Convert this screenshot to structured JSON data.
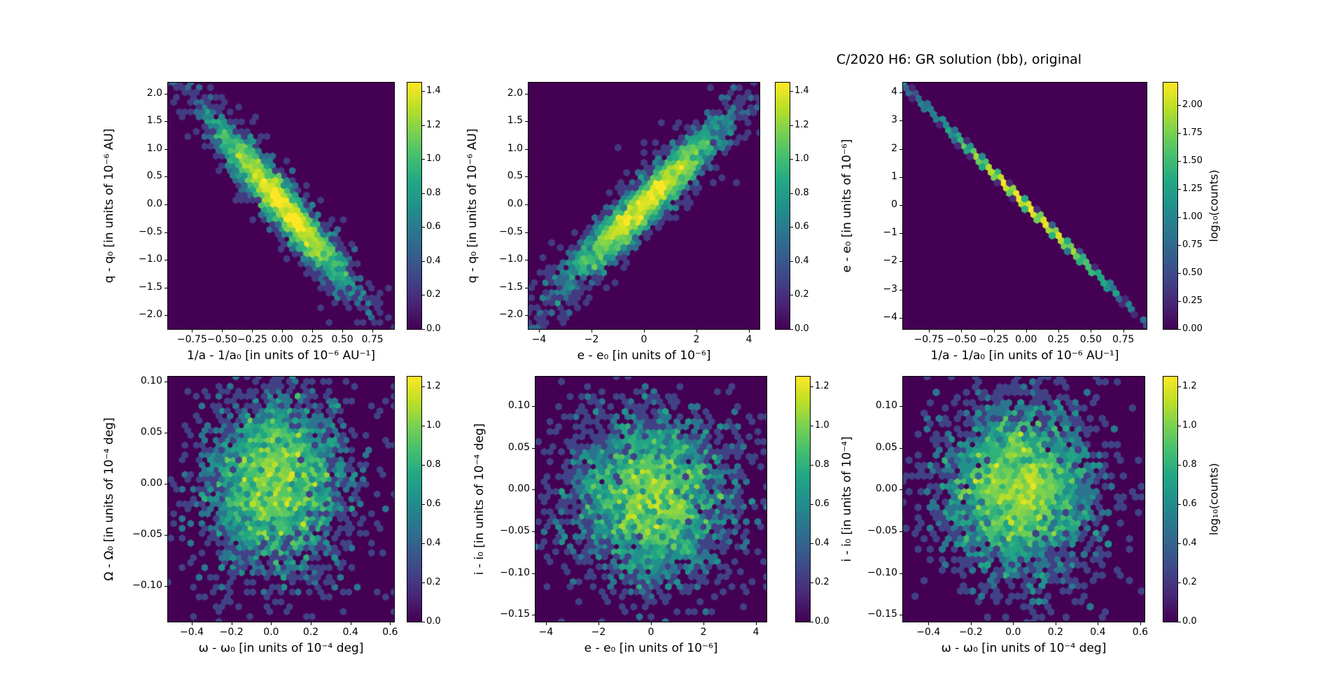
{
  "title": "C/2020 H6: GR solution (bb), original",
  "colors": {
    "background": "#ffffff",
    "plot_background": "#440154",
    "text": "#000000",
    "viridis": [
      "#440154",
      "#482475",
      "#414487",
      "#355f8d",
      "#2a788e",
      "#21918c",
      "#22a884",
      "#44bf70",
      "#7ad151",
      "#bddf26",
      "#fde725"
    ]
  },
  "chart_data": [
    {
      "id": "top-left",
      "type": "hexbin",
      "xlabel": "1/a - 1/a₀ [in units of 10⁻⁶ AU⁻¹]",
      "ylabel": "q - q₀ [in units of 10⁻⁶ AU]",
      "xlim": [
        -0.95,
        0.93
      ],
      "ylim": [
        -2.25,
        2.2
      ],
      "xticks": [
        -0.75,
        -0.5,
        -0.25,
        0,
        0.25,
        0.5,
        0.75
      ],
      "xtick_labels": [
        "−0.75",
        "−0.50",
        "−0.25",
        "0.00",
        "0.25",
        "0.50",
        "0.75"
      ],
      "yticks": [
        2,
        1.5,
        1,
        0.5,
        0,
        -0.5,
        -1,
        -1.5,
        -2
      ],
      "ytick_labels": [
        "2.0",
        "1.5",
        "1.0",
        "0.5",
        "0.0",
        "−0.5",
        "−1.0",
        "−1.5",
        "−2.0"
      ],
      "colorbar": {
        "vmin": 0,
        "vmax": 1.45,
        "ticks": [
          0,
          0.2,
          0.4,
          0.6,
          0.8,
          1.0,
          1.2,
          1.4
        ],
        "tick_labels": [
          "0.0",
          "0.2",
          "0.4",
          "0.6",
          "0.8",
          "1.0",
          "1.2",
          "1.4"
        ],
        "label": ""
      },
      "distribution": {
        "shape": "correlated-ellipse",
        "x_mean": 0,
        "y_mean": 0,
        "x_sigma": 0.27,
        "y_sigma": 0.7,
        "correlation": -0.95,
        "n_points": 3000,
        "peak_log10_counts": 1.45
      }
    },
    {
      "id": "top-middle",
      "type": "hexbin",
      "xlabel": "e - e₀ [in units of 10⁻⁶]",
      "ylabel": "q - q₀ [in units of 10⁻⁶ AU]",
      "xlim": [
        -4.4,
        4.4
      ],
      "ylim": [
        -2.25,
        2.2
      ],
      "xticks": [
        -4,
        -2,
        0,
        2,
        4
      ],
      "xtick_labels": [
        "−4",
        "−2",
        "0",
        "2",
        "4"
      ],
      "yticks": [
        2,
        1.5,
        1,
        0.5,
        0,
        -0.5,
        -1,
        -1.5,
        -2
      ],
      "ytick_labels": [
        "2.0",
        "1.5",
        "1.0",
        "0.5",
        "0.0",
        "−0.5",
        "−1.0",
        "−1.5",
        "−2.0"
      ],
      "colorbar": {
        "vmin": 0,
        "vmax": 1.45,
        "ticks": [
          0,
          0.2,
          0.4,
          0.6,
          0.8,
          1.0,
          1.2,
          1.4
        ],
        "tick_labels": [
          "0.0",
          "0.2",
          "0.4",
          "0.6",
          "0.8",
          "1.0",
          "1.2",
          "1.4"
        ],
        "label": ""
      },
      "distribution": {
        "shape": "correlated-ellipse",
        "x_mean": 0,
        "y_mean": 0,
        "x_sigma": 1.45,
        "y_sigma": 0.7,
        "correlation": 0.95,
        "n_points": 3000,
        "peak_log10_counts": 1.45
      }
    },
    {
      "id": "top-right",
      "type": "hexbin",
      "xlabel": "1/a - 1/a₀ [in units of 10⁻⁶ AU⁻¹]",
      "ylabel": "e - e₀ [in units of 10⁻⁶]",
      "xlim": [
        -0.95,
        0.93
      ],
      "ylim": [
        -4.4,
        4.35
      ],
      "xticks": [
        -0.75,
        -0.5,
        -0.25,
        0,
        0.25,
        0.5,
        0.75
      ],
      "xtick_labels": [
        "−0.75",
        "−0.50",
        "−0.25",
        "0.00",
        "0.25",
        "0.50",
        "0.75"
      ],
      "yticks": [
        4,
        3,
        2,
        1,
        0,
        -1,
        -2,
        -3,
        -4
      ],
      "ytick_labels": [
        "4",
        "3",
        "2",
        "1",
        "0",
        "−1",
        "−2",
        "−3",
        "−4"
      ],
      "colorbar": {
        "vmin": 0,
        "vmax": 2.2,
        "ticks": [
          0,
          0.25,
          0.5,
          0.75,
          1.0,
          1.25,
          1.5,
          1.75,
          2.0
        ],
        "tick_labels": [
          "0.00",
          "0.25",
          "0.50",
          "0.75",
          "1.00",
          "1.25",
          "1.50",
          "1.75",
          "2.00"
        ],
        "label": "log₁₀(counts)"
      },
      "distribution": {
        "shape": "thin-line",
        "x_mean": 0,
        "y_mean": 0,
        "x_sigma": 0.27,
        "y_sigma": 1.22,
        "correlation": -0.9998,
        "n_points": 3000,
        "peak_log10_counts": 2.2
      }
    },
    {
      "id": "bottom-left",
      "type": "hexbin",
      "xlabel": "ω - ω₀ [in units of 10⁻⁴ deg]",
      "ylabel": "Ω - Ω₀ [in units of 10⁻⁴ deg]",
      "xlim": [
        -0.52,
        0.62
      ],
      "ylim": [
        -0.135,
        0.105
      ],
      "xticks": [
        -0.4,
        -0.2,
        0,
        0.2,
        0.4,
        0.6
      ],
      "xtick_labels": [
        "−0.4",
        "−0.2",
        "0.0",
        "0.2",
        "0.4",
        "0.6"
      ],
      "yticks": [
        0.1,
        0.05,
        0,
        -0.05,
        -0.1
      ],
      "ytick_labels": [
        "0.10",
        "0.05",
        "0.00",
        "−0.05",
        "−0.10"
      ],
      "colorbar": {
        "vmin": 0,
        "vmax": 1.25,
        "ticks": [
          0,
          0.2,
          0.4,
          0.6,
          0.8,
          1.0,
          1.2
        ],
        "tick_labels": [
          "0.0",
          "0.2",
          "0.4",
          "0.6",
          "0.8",
          "1.0",
          "1.2"
        ],
        "label": ""
      },
      "distribution": {
        "shape": "isotropic-blob",
        "x_mean": 0.02,
        "y_mean": 0,
        "x_sigma": 0.165,
        "y_sigma": 0.042,
        "correlation": 0,
        "n_points": 3500,
        "peak_log10_counts": 1.25
      }
    },
    {
      "id": "bottom-middle",
      "type": "hexbin",
      "xlabel": "e - e₀ [in units of 10⁻⁶]",
      "ylabel": "i - i₀ [in units of 10⁻⁴ deg]",
      "xlim": [
        -4.4,
        4.4
      ],
      "ylim": [
        -0.158,
        0.135
      ],
      "xticks": [
        -4,
        -2,
        0,
        2,
        4
      ],
      "xtick_labels": [
        "−4",
        "−2",
        "0",
        "2",
        "4"
      ],
      "yticks": [
        0.1,
        0.05,
        0,
        -0.05,
        -0.1,
        -0.15
      ],
      "ytick_labels": [
        "0.10",
        "0.05",
        "0.00",
        "−0.05",
        "−0.10",
        "−0.15"
      ],
      "colorbar": {
        "vmin": 0,
        "vmax": 1.25,
        "ticks": [
          0,
          0.2,
          0.4,
          0.6,
          0.8,
          1.0,
          1.2
        ],
        "tick_labels": [
          "0.0",
          "0.2",
          "0.4",
          "0.6",
          "0.8",
          "1.0",
          "1.2"
        ],
        "label": ""
      },
      "distribution": {
        "shape": "isotropic-blob",
        "x_mean": 0,
        "y_mean": -0.01,
        "x_sigma": 1.45,
        "y_sigma": 0.048,
        "correlation": 0,
        "n_points": 3500,
        "peak_log10_counts": 1.25
      }
    },
    {
      "id": "bottom-right",
      "type": "hexbin",
      "xlabel": "ω - ω₀ [in units of 10⁻⁴ deg]",
      "ylabel": "i - i₀ [in units of 10⁻⁴]",
      "xlim": [
        -0.52,
        0.62
      ],
      "ylim": [
        -0.158,
        0.135
      ],
      "xticks": [
        -0.4,
        -0.2,
        0,
        0.2,
        0.4,
        0.6
      ],
      "xtick_labels": [
        "−0.4",
        "−0.2",
        "0.0",
        "0.2",
        "0.4",
        "0.6"
      ],
      "yticks": [
        0.1,
        0.05,
        0,
        -0.05,
        -0.1,
        -0.15
      ],
      "ytick_labels": [
        "0.10",
        "0.05",
        "0.00",
        "−0.05",
        "−0.10",
        "−0.15"
      ],
      "colorbar": {
        "vmin": 0,
        "vmax": 1.25,
        "ticks": [
          0,
          0.2,
          0.4,
          0.6,
          0.8,
          1.0,
          1.2
        ],
        "tick_labels": [
          "0.0",
          "0.2",
          "0.4",
          "0.6",
          "0.8",
          "1.0",
          "1.2"
        ],
        "label": "log₁₀(counts)"
      },
      "distribution": {
        "shape": "isotropic-blob",
        "x_mean": 0.02,
        "y_mean": 0,
        "x_sigma": 0.165,
        "y_sigma": 0.048,
        "correlation": 0,
        "n_points": 3500,
        "peak_log10_counts": 1.25
      }
    }
  ]
}
